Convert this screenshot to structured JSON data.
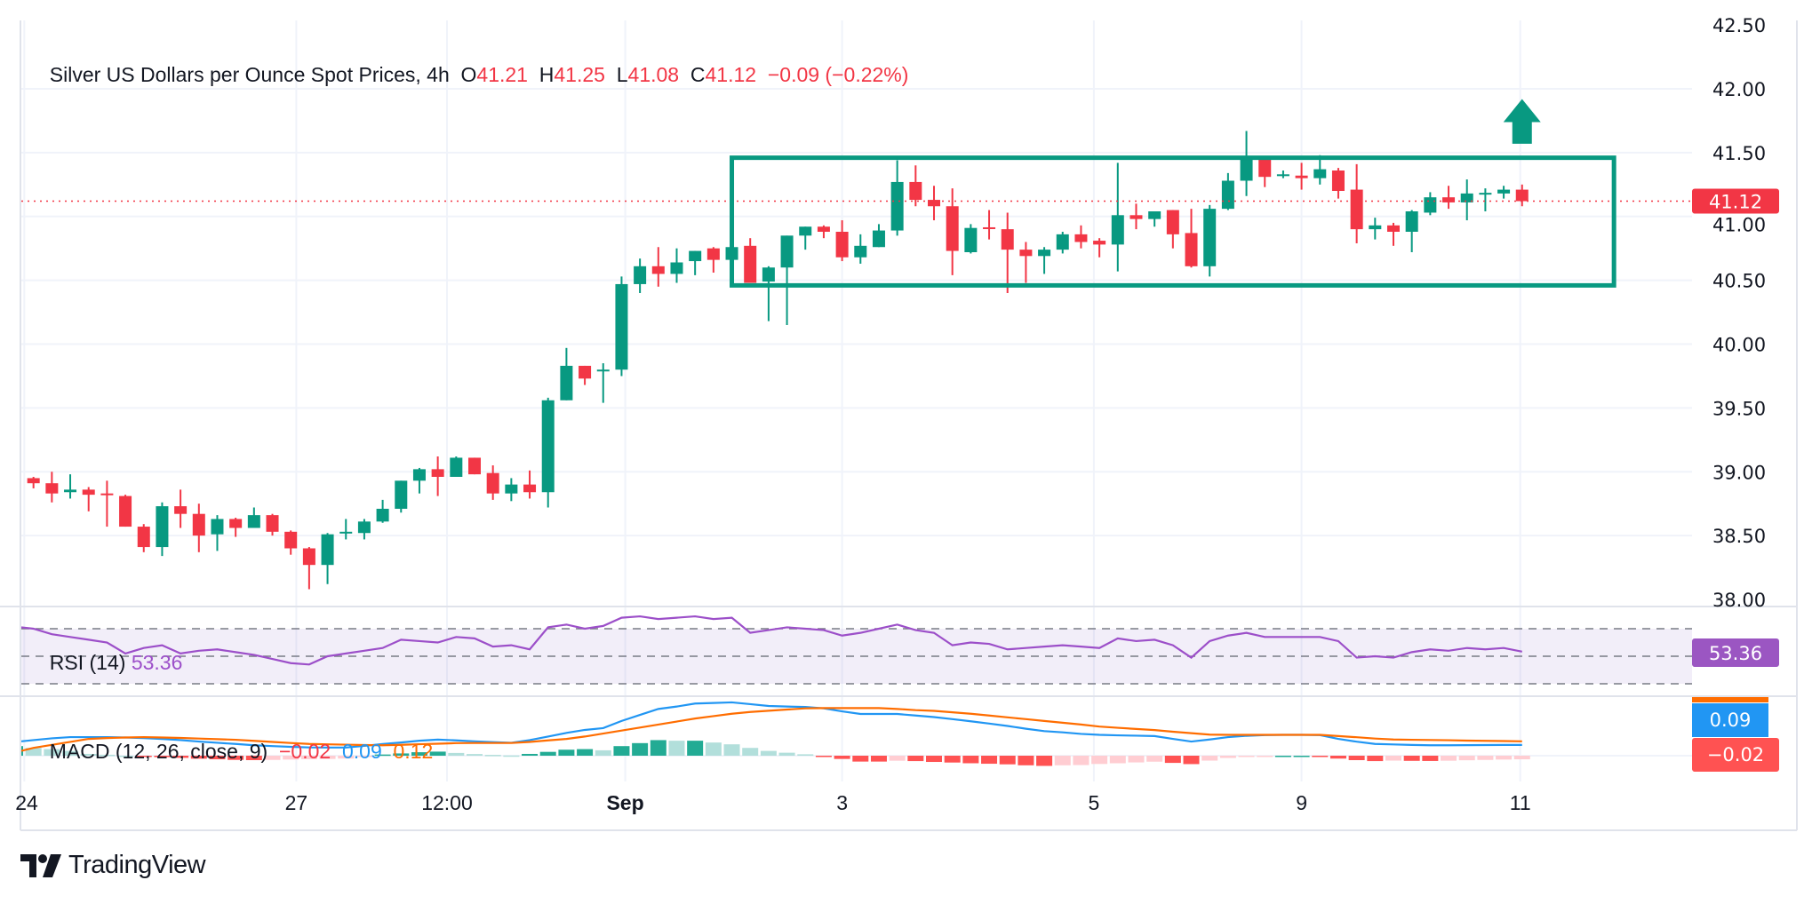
{
  "header": {
    "symbol": "Silver US Dollars per Ounce Spot Prices, 4h",
    "o_label": "O",
    "o": "41.21",
    "h_label": "H",
    "h": "41.25",
    "l_label": "L",
    "l": "41.08",
    "c_label": "C",
    "c": "41.12",
    "change": "−0.09 (−0.22%)"
  },
  "rsi_legend": {
    "label": "RSI (14)",
    "value": "53.36"
  },
  "macd_legend": {
    "label": "MACD (12, 26, close, 9)",
    "hist": "−0.02",
    "macd": "0.09",
    "signal": "0.12"
  },
  "badges": {
    "price": "41.12",
    "rsi": "53.36",
    "macd": "0.09",
    "hist": "−0.02"
  },
  "brand": "TradingView",
  "colors": {
    "up": "#089981",
    "down": "#f23645",
    "rsi": "#9c4fc9",
    "macd": "#2196f3",
    "signal": "#ff6d00",
    "box": "#089981"
  },
  "chart_data": [
    {
      "type": "candlestick",
      "title": "Silver US Dollars per Ounce Spot Prices, 4h",
      "y_ticks": [
        "42.50",
        "42.00",
        "41.50",
        "41.00",
        "40.50",
        "40.00",
        "39.50",
        "39.00",
        "38.50",
        "38.00"
      ],
      "ylim": [
        38.0,
        42.5
      ],
      "x_ticks": [
        {
          "label": "24",
          "index": 0.5
        },
        {
          "label": "27",
          "index": 15.3
        },
        {
          "label": "12:00",
          "index": 23.5
        },
        {
          "label": "Sep",
          "index": 33.2,
          "bold": true
        },
        {
          "label": "3",
          "index": 45
        },
        {
          "label": "5",
          "index": 58.7
        },
        {
          "label": "9",
          "index": 70
        },
        {
          "label": "11",
          "index": 81.9
        }
      ],
      "grid": true,
      "last_price": 41.12,
      "ohlc": [
        [
          38.92,
          38.94,
          38.89,
          38.9
        ],
        [
          38.95,
          38.96,
          38.87,
          38.91
        ],
        [
          38.91,
          39.0,
          38.76,
          38.83
        ],
        [
          38.84,
          38.98,
          38.79,
          38.86
        ],
        [
          38.86,
          38.88,
          38.69,
          38.82
        ],
        [
          38.83,
          38.93,
          38.57,
          38.82
        ],
        [
          38.81,
          38.82,
          38.57,
          38.57
        ],
        [
          38.57,
          38.59,
          38.37,
          38.41
        ],
        [
          38.41,
          38.76,
          38.34,
          38.73
        ],
        [
          38.73,
          38.86,
          38.56,
          38.67
        ],
        [
          38.67,
          38.75,
          38.37,
          38.5
        ],
        [
          38.51,
          38.66,
          38.38,
          38.63
        ],
        [
          38.63,
          38.64,
          38.49,
          38.56
        ],
        [
          38.56,
          38.72,
          38.56,
          38.66
        ],
        [
          38.66,
          38.67,
          38.5,
          38.53
        ],
        [
          38.53,
          38.54,
          38.35,
          38.4
        ],
        [
          38.4,
          38.41,
          38.08,
          38.27
        ],
        [
          38.27,
          38.52,
          38.12,
          38.51
        ],
        [
          38.52,
          38.63,
          38.47,
          38.53
        ],
        [
          38.52,
          38.63,
          38.47,
          38.61
        ],
        [
          38.61,
          38.78,
          38.6,
          38.71
        ],
        [
          38.71,
          38.93,
          38.68,
          38.93
        ],
        [
          38.93,
          39.03,
          38.83,
          39.02
        ],
        [
          39.02,
          39.12,
          38.81,
          38.96
        ],
        [
          38.96,
          39.12,
          38.96,
          39.11
        ],
        [
          39.11,
          39.11,
          38.98,
          38.98
        ],
        [
          38.99,
          39.05,
          38.78,
          38.83
        ],
        [
          38.83,
          38.95,
          38.77,
          38.9
        ],
        [
          38.9,
          39.01,
          38.79,
          38.84
        ],
        [
          38.84,
          39.58,
          38.72,
          39.56
        ],
        [
          39.56,
          39.97,
          39.56,
          39.83
        ],
        [
          39.83,
          39.83,
          39.68,
          39.73
        ],
        [
          39.79,
          39.85,
          39.54,
          39.8
        ],
        [
          39.8,
          40.53,
          39.75,
          40.47
        ],
        [
          40.47,
          40.67,
          40.4,
          40.61
        ],
        [
          40.61,
          40.76,
          40.45,
          40.55
        ],
        [
          40.55,
          40.75,
          40.48,
          40.64
        ],
        [
          40.65,
          40.73,
          40.54,
          40.73
        ],
        [
          40.75,
          40.76,
          40.56,
          40.66
        ],
        [
          40.66,
          40.77,
          40.66,
          40.76
        ],
        [
          40.77,
          40.83,
          40.48,
          40.48
        ],
        [
          40.49,
          40.61,
          40.18,
          40.6
        ],
        [
          40.6,
          40.85,
          40.15,
          40.85
        ],
        [
          40.85,
          40.92,
          40.74,
          40.92
        ],
        [
          40.92,
          40.93,
          40.83,
          40.88
        ],
        [
          40.88,
          40.97,
          40.65,
          40.68
        ],
        [
          40.68,
          40.86,
          40.63,
          40.77
        ],
        [
          40.76,
          40.94,
          40.76,
          40.89
        ],
        [
          40.89,
          41.44,
          40.85,
          41.27
        ],
        [
          41.27,
          41.4,
          41.08,
          41.13
        ],
        [
          41.13,
          41.24,
          40.97,
          41.08
        ],
        [
          41.08,
          41.22,
          40.54,
          40.73
        ],
        [
          40.72,
          40.94,
          40.71,
          40.91
        ],
        [
          40.915,
          41.05,
          40.82,
          40.91
        ],
        [
          40.9,
          41.03,
          40.4,
          40.74
        ],
        [
          40.74,
          40.8,
          40.48,
          40.69
        ],
        [
          40.69,
          40.76,
          40.55,
          40.74
        ],
        [
          40.74,
          40.88,
          40.71,
          40.86
        ],
        [
          40.86,
          40.93,
          40.75,
          40.8
        ],
        [
          40.81,
          40.83,
          40.68,
          40.78
        ],
        [
          40.78,
          41.42,
          40.57,
          41.01
        ],
        [
          41.01,
          41.1,
          40.9,
          40.98
        ],
        [
          40.98,
          41.04,
          40.92,
          41.04
        ],
        [
          41.05,
          41.05,
          40.75,
          40.86
        ],
        [
          40.87,
          41.06,
          40.6,
          40.61
        ],
        [
          40.61,
          41.09,
          40.53,
          41.06
        ],
        [
          41.06,
          41.34,
          41.05,
          41.28
        ],
        [
          41.28,
          41.67,
          41.16,
          41.46
        ],
        [
          41.45,
          41.46,
          41.23,
          41.31
        ],
        [
          41.32,
          41.36,
          41.3,
          41.33
        ],
        [
          41.32,
          41.42,
          41.21,
          41.3
        ],
        [
          41.3,
          41.48,
          41.25,
          41.37
        ],
        [
          41.36,
          41.38,
          41.14,
          41.2
        ],
        [
          41.21,
          41.41,
          40.79,
          40.9
        ],
        [
          40.9,
          40.99,
          40.82,
          40.93
        ],
        [
          40.93,
          40.95,
          40.77,
          40.88
        ],
        [
          40.88,
          41.05,
          40.72,
          41.04
        ],
        [
          41.03,
          41.19,
          41.01,
          41.15
        ],
        [
          41.15,
          41.24,
          41.06,
          41.11
        ],
        [
          41.11,
          41.29,
          40.97,
          41.18
        ],
        [
          41.18,
          41.22,
          41.04,
          41.185
        ],
        [
          41.18,
          41.24,
          41.14,
          41.21
        ],
        [
          41.21,
          41.25,
          41.08,
          41.12
        ]
      ],
      "annotations": {
        "range_box": {
          "top": 41.46,
          "bottom": 40.46,
          "start_index": 39,
          "end_index": 87
        },
        "up_arrow": {
          "index": 82,
          "from": 41.57,
          "to": 41.92
        }
      }
    },
    {
      "type": "line",
      "name": "RSI (14)",
      "levels": [
        70,
        50,
        30
      ],
      "ylim": [
        0,
        100
      ],
      "values": [
        71,
        70,
        66,
        64,
        62,
        60,
        52,
        56,
        58,
        52,
        54,
        55,
        53,
        51,
        48,
        45,
        44,
        50,
        52,
        54,
        56,
        62,
        61,
        60,
        64,
        63,
        57,
        58,
        55,
        71,
        73,
        70,
        72,
        78,
        79,
        77,
        78,
        79,
        77,
        78,
        67,
        69,
        71,
        70,
        69,
        65,
        67,
        70,
        73,
        69,
        67,
        58,
        60,
        59,
        55,
        56,
        57,
        58,
        57,
        56,
        63,
        61,
        62,
        58,
        49,
        61,
        65,
        67,
        64,
        64,
        64,
        64,
        61,
        49,
        50,
        49,
        53,
        55,
        54,
        56,
        55,
        56,
        53.36
      ]
    },
    {
      "type": "line+bar",
      "name": "MACD (12, 26, close, 9)",
      "macd": [
        0.12,
        0.13,
        0.145,
        0.155,
        0.155,
        0.155,
        0.152,
        0.147,
        0.14,
        0.13,
        0.118,
        0.108,
        0.098,
        0.087,
        0.08,
        0.074,
        0.069,
        0.068,
        0.068,
        0.082,
        0.097,
        0.11,
        0.125,
        0.134,
        0.128,
        0.12,
        0.113,
        0.108,
        0.13,
        0.16,
        0.19,
        0.215,
        0.23,
        0.29,
        0.34,
        0.39,
        0.41,
        0.435,
        0.44,
        0.445,
        0.43,
        0.415,
        0.41,
        0.407,
        0.395,
        0.37,
        0.348,
        0.348,
        0.348,
        0.335,
        0.322,
        0.305,
        0.287,
        0.268,
        0.248,
        0.225,
        0.205,
        0.195,
        0.182,
        0.174,
        0.17,
        0.167,
        0.164,
        0.14,
        0.118,
        0.135,
        0.155,
        0.166,
        0.172,
        0.174,
        0.174,
        0.172,
        0.14,
        0.117,
        0.098,
        0.094,
        0.09,
        0.087,
        0.087,
        0.088,
        0.089,
        0.09,
        0.09
      ],
      "signal": [
        0.04,
        0.065,
        0.09,
        0.115,
        0.14,
        0.147,
        0.152,
        0.155,
        0.152,
        0.148,
        0.143,
        0.138,
        0.133,
        0.124,
        0.115,
        0.106,
        0.098,
        0.095,
        0.092,
        0.089,
        0.087,
        0.091,
        0.096,
        0.1,
        0.105,
        0.106,
        0.106,
        0.106,
        0.115,
        0.128,
        0.14,
        0.16,
        0.185,
        0.21,
        0.235,
        0.26,
        0.285,
        0.31,
        0.33,
        0.35,
        0.365,
        0.375,
        0.385,
        0.395,
        0.397,
        0.397,
        0.397,
        0.397,
        0.39,
        0.38,
        0.374,
        0.362,
        0.35,
        0.335,
        0.32,
        0.305,
        0.29,
        0.275,
        0.26,
        0.243,
        0.233,
        0.223,
        0.214,
        0.2,
        0.188,
        0.176,
        0.174,
        0.174,
        0.174,
        0.174,
        0.174,
        0.174,
        0.164,
        0.154,
        0.143,
        0.135,
        0.133,
        0.131,
        0.129,
        0.126,
        0.124,
        0.122,
        0.12
      ]
    }
  ]
}
